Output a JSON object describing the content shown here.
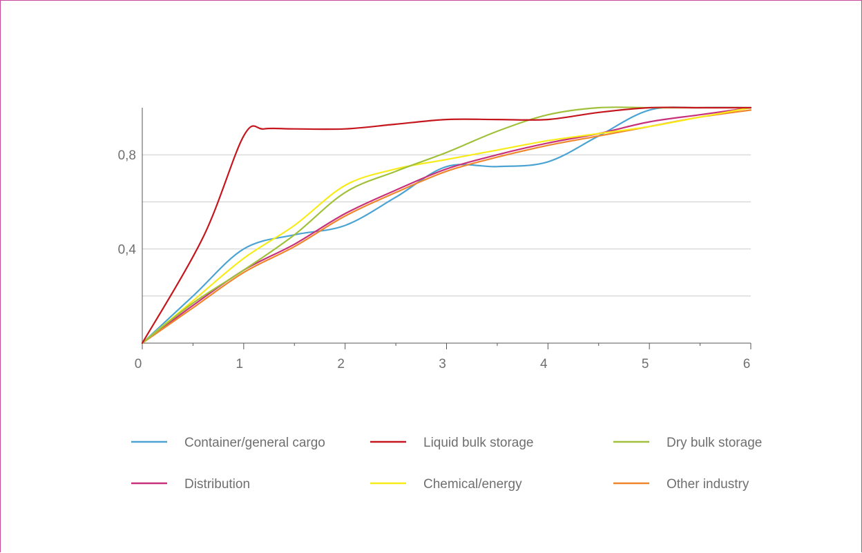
{
  "chart_data": {
    "type": "line",
    "title": "",
    "xlabel": "",
    "ylabel": "",
    "xlim": [
      0,
      6
    ],
    "ylim": [
      0,
      1
    ],
    "x_ticks": [
      0,
      1,
      2,
      3,
      4,
      5,
      6
    ],
    "x_tick_labels": [
      "0",
      "1",
      "2",
      "3",
      "4",
      "5",
      "6"
    ],
    "y_ticks_labeled": [
      0.4,
      0.8
    ],
    "y_tick_labels": [
      "0,4",
      "0,8"
    ],
    "y_gridlines": [
      0.2,
      0.4,
      0.6,
      0.8
    ],
    "grid": true,
    "legend_position": "bottom",
    "series": [
      {
        "name": "Container/general cargo",
        "color": "#4ba3d3",
        "points": [
          [
            0,
            0
          ],
          [
            0.5,
            0.2
          ],
          [
            1,
            0.4
          ],
          [
            1.5,
            0.46
          ],
          [
            2,
            0.5
          ],
          [
            2.5,
            0.62
          ],
          [
            3,
            0.75
          ],
          [
            3.5,
            0.75
          ],
          [
            4,
            0.77
          ],
          [
            4.5,
            0.88
          ],
          [
            5,
            0.99
          ],
          [
            5.5,
            1.0
          ],
          [
            6,
            1.0
          ]
        ]
      },
      {
        "name": "Liquid bulk storage",
        "color": "#c4161c",
        "points": [
          [
            0,
            0
          ],
          [
            0.6,
            0.45
          ],
          [
            1,
            0.88
          ],
          [
            1.2,
            0.91
          ],
          [
            1.5,
            0.91
          ],
          [
            2,
            0.91
          ],
          [
            2.5,
            0.93
          ],
          [
            3,
            0.95
          ],
          [
            3.5,
            0.95
          ],
          [
            4,
            0.95
          ],
          [
            4.5,
            0.98
          ],
          [
            5,
            1.0
          ],
          [
            5.5,
            1.0
          ],
          [
            6,
            1.0
          ]
        ]
      },
      {
        "name": "Dry bulk storage",
        "color": "#a1c03a",
        "points": [
          [
            0,
            0
          ],
          [
            0.5,
            0.17
          ],
          [
            1,
            0.31
          ],
          [
            1.5,
            0.46
          ],
          [
            2,
            0.64
          ],
          [
            2.5,
            0.73
          ],
          [
            3,
            0.81
          ],
          [
            3.5,
            0.9
          ],
          [
            4,
            0.97
          ],
          [
            4.5,
            1.0
          ],
          [
            5,
            1.0
          ],
          [
            5.5,
            1.0
          ],
          [
            6,
            1.0
          ]
        ]
      },
      {
        "name": "Distribution",
        "color": "#c8307b",
        "points": [
          [
            0,
            0
          ],
          [
            0.5,
            0.16
          ],
          [
            1,
            0.31
          ],
          [
            1.5,
            0.42
          ],
          [
            2,
            0.55
          ],
          [
            2.5,
            0.65
          ],
          [
            3,
            0.74
          ],
          [
            3.5,
            0.8
          ],
          [
            4,
            0.85
          ],
          [
            4.5,
            0.89
          ],
          [
            5,
            0.94
          ],
          [
            5.5,
            0.97
          ],
          [
            6,
            1.0
          ]
        ]
      },
      {
        "name": "Chemical/energy",
        "color": "#f7ec1a",
        "points": [
          [
            0,
            0
          ],
          [
            0.5,
            0.18
          ],
          [
            1,
            0.36
          ],
          [
            1.5,
            0.5
          ],
          [
            2,
            0.67
          ],
          [
            2.5,
            0.74
          ],
          [
            3,
            0.78
          ],
          [
            3.5,
            0.82
          ],
          [
            4,
            0.86
          ],
          [
            4.5,
            0.89
          ],
          [
            5,
            0.92
          ],
          [
            5.5,
            0.96
          ],
          [
            6,
            1.0
          ]
        ]
      },
      {
        "name": "Other industry",
        "color": "#f0862b",
        "points": [
          [
            0,
            0
          ],
          [
            0.5,
            0.15
          ],
          [
            1,
            0.3
          ],
          [
            1.5,
            0.41
          ],
          [
            2,
            0.54
          ],
          [
            2.5,
            0.64
          ],
          [
            3,
            0.73
          ],
          [
            3.5,
            0.79
          ],
          [
            4,
            0.84
          ],
          [
            4.5,
            0.88
          ],
          [
            5,
            0.92
          ],
          [
            5.5,
            0.96
          ],
          [
            6,
            0.99
          ]
        ]
      }
    ]
  },
  "colors": {
    "frame_border": "#c8479b",
    "axis": "#555555",
    "grid": "#cccccc",
    "text": "#6f6f6f"
  }
}
